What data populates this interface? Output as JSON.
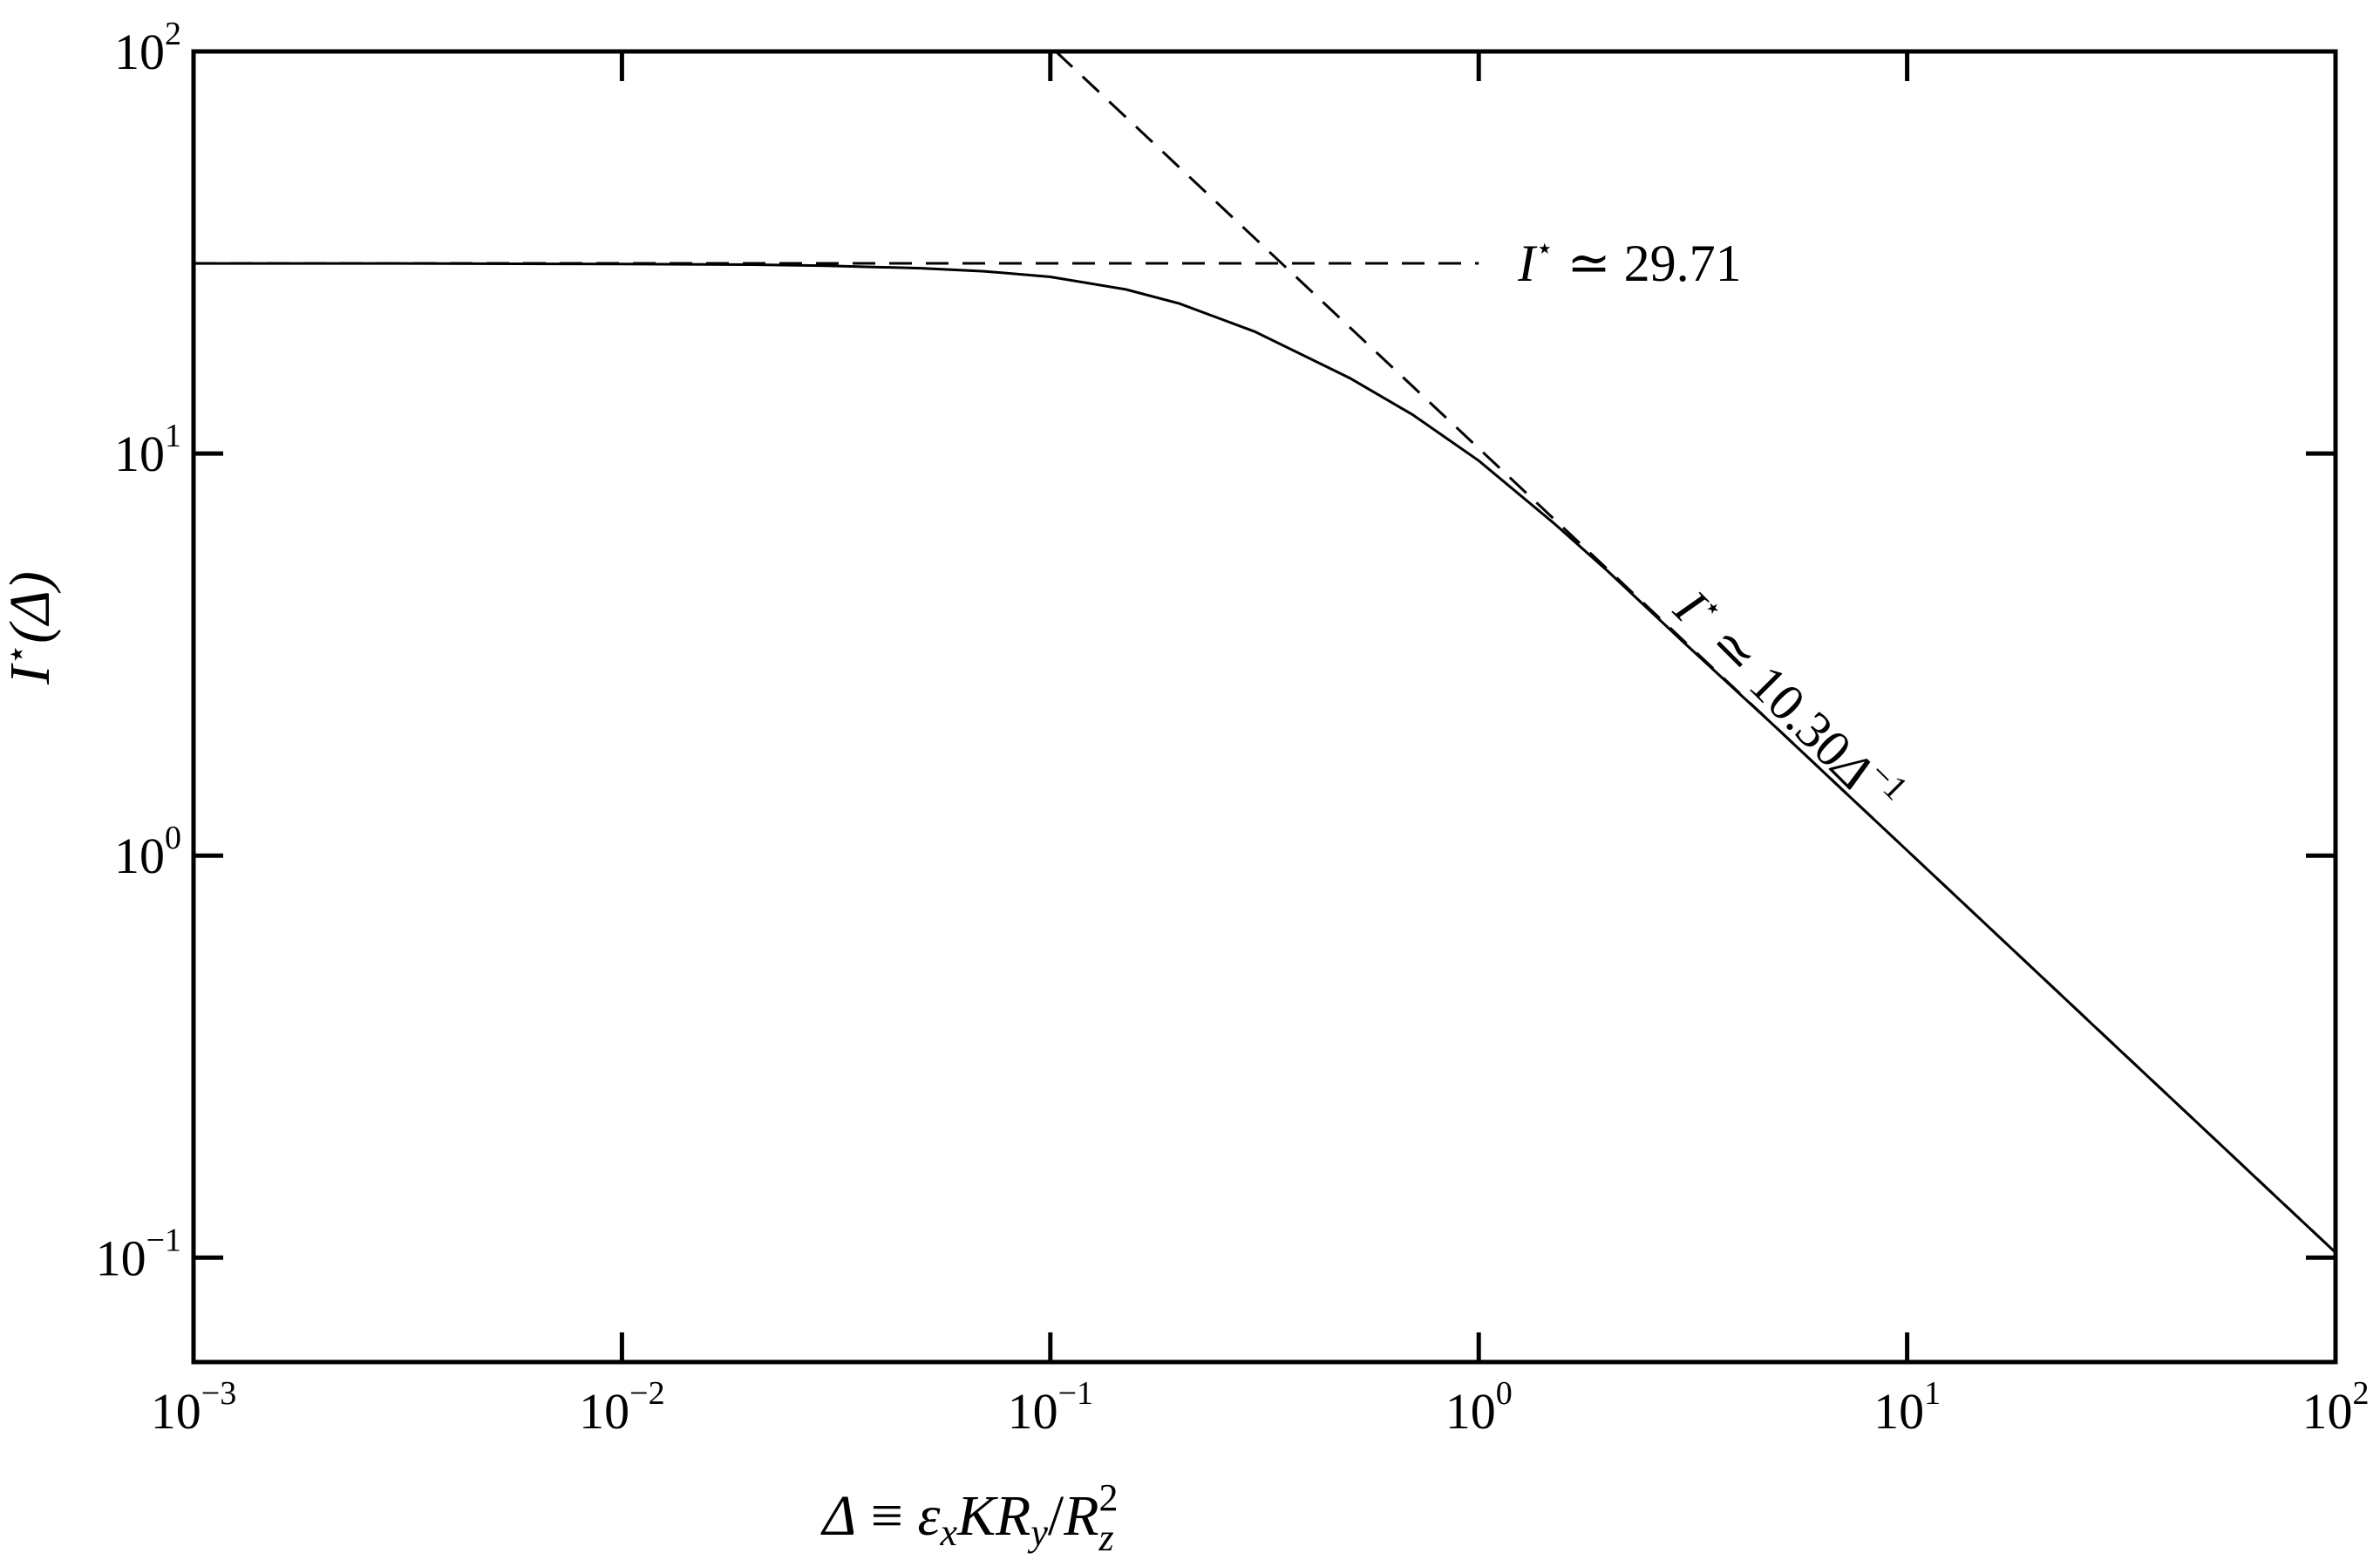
{
  "chart_data": {
    "type": "line",
    "xscale": "log",
    "yscale": "log",
    "xlim": [
      0.001,
      100
    ],
    "ylim": [
      0.055,
      100
    ],
    "xlabel": "Δ ≡ εxKRy/Rz2",
    "xlabel_parts": {
      "lhs": "Δ",
      "eq": " ≡ ",
      "eps": "ε",
      "eps_sub": "x",
      "k": "K",
      "r1": "R",
      "r1_sub": "y",
      "slash": "/",
      "r2": "R",
      "r2_sup": "2",
      "r2_sub": "z"
    },
    "ylabel": "I⋆(Δ)",
    "ylabel_parts": {
      "i": "I",
      "star": "⋆",
      "rest": "(Δ)"
    },
    "x_ticks": [
      {
        "value": 0.001,
        "base": "10",
        "exp": "−3"
      },
      {
        "value": 0.01,
        "base": "10",
        "exp": "−2"
      },
      {
        "value": 0.1,
        "base": "10",
        "exp": "−1"
      },
      {
        "value": 1,
        "base": "10",
        "exp": "0"
      },
      {
        "value": 10,
        "base": "10",
        "exp": "1"
      },
      {
        "value": 100,
        "base": "10",
        "exp": "2"
      }
    ],
    "y_ticks": [
      {
        "value": 0.1,
        "base": "10",
        "exp": "−1"
      },
      {
        "value": 1,
        "base": "10",
        "exp": "0"
      },
      {
        "value": 10,
        "base": "10",
        "exp": "1"
      },
      {
        "value": 100,
        "base": "10",
        "exp": "2"
      }
    ],
    "grid": false,
    "series": [
      {
        "style": "solid",
        "x": [
          0.001,
          0.003,
          0.01,
          0.02,
          0.03,
          0.05,
          0.07,
          0.1,
          0.15,
          0.2,
          0.3,
          0.5,
          0.7,
          1,
          1.5,
          2,
          3,
          5,
          7,
          10,
          20,
          30,
          50,
          70,
          100
        ],
        "y": [
          29.7,
          29.7,
          29.6,
          29.5,
          29.3,
          28.9,
          28.4,
          27.5,
          25.6,
          23.6,
          20.1,
          15.4,
          12.5,
          9.6,
          6.7,
          5.1,
          3.4,
          2.06,
          1.47,
          1.03,
          0.515,
          0.343,
          0.206,
          0.147,
          0.103
        ]
      },
      {
        "style": "dashed",
        "kind": "horizontal asymptote",
        "x": [
          0.001,
          1
        ],
        "y": [
          29.71,
          29.71
        ]
      },
      {
        "style": "dashed",
        "kind": "power-law asymptote",
        "x": [
          0.103,
          100
        ],
        "y": [
          100,
          0.103
        ]
      }
    ],
    "annotations": [
      {
        "id": "plateau",
        "i": "I",
        "star": "⋆",
        "text": " ≃ 29.71",
        "x": 1.2,
        "y": 29.71
      },
      {
        "id": "powerlaw",
        "i": "I",
        "star": "⋆",
        "text": " ≃ 10.30",
        "delta": "Δ",
        "sup": "−1",
        "x": 3.4,
        "y": 4.2
      }
    ]
  }
}
